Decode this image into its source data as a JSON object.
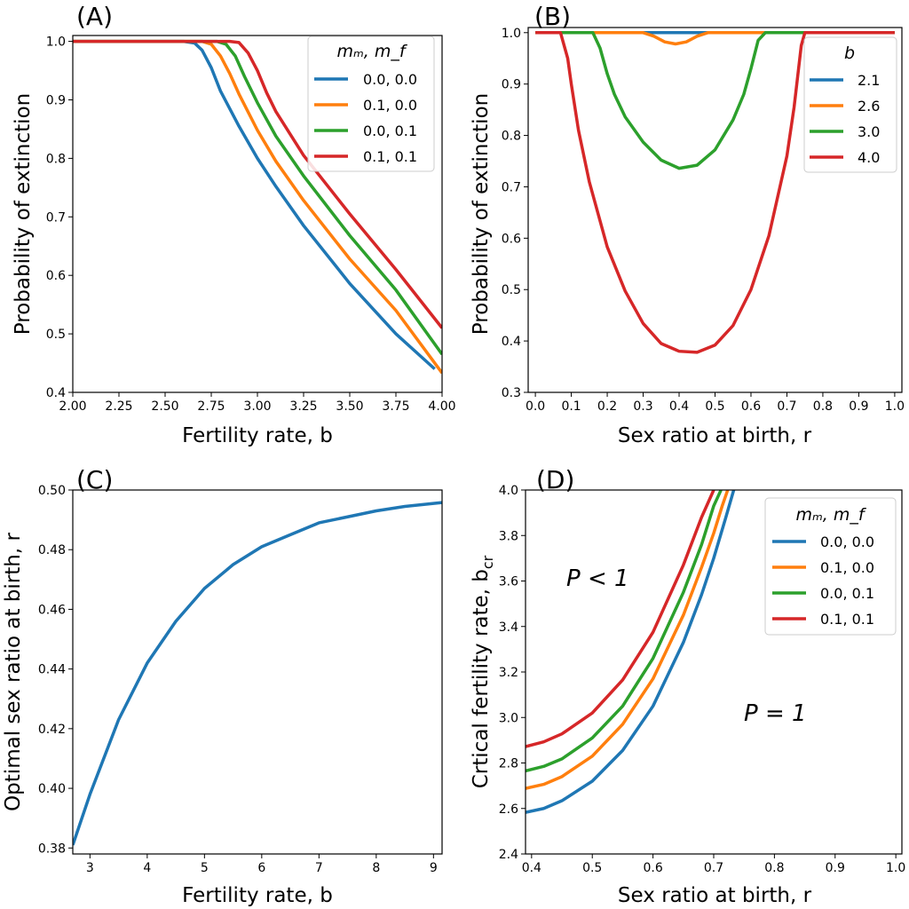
{
  "colors": {
    "blue": "#1f77b4",
    "orange": "#ff7f0e",
    "green": "#2ca02c",
    "red": "#d62728"
  },
  "chart_data": [
    {
      "id": "A",
      "panel_label": "(A)",
      "type": "line",
      "xlabel": "Fertility rate, b",
      "ylabel": "Probability of extinction",
      "xlim": [
        2.0,
        4.0
      ],
      "ylim": [
        0.4,
        1.01
      ],
      "xticks": [
        2.0,
        2.25,
        2.5,
        2.75,
        3.0,
        3.25,
        3.5,
        3.75,
        4.0
      ],
      "xtick_labels": [
        "2.00",
        "2.25",
        "2.50",
        "2.75",
        "3.00",
        "3.25",
        "3.50",
        "3.75",
        "4.00"
      ],
      "yticks": [
        0.4,
        0.5,
        0.6,
        0.7,
        0.8,
        0.9,
        1.0
      ],
      "ytick_labels": [
        "0.4",
        "0.5",
        "0.6",
        "0.7",
        "0.8",
        "0.9",
        "1.0"
      ],
      "legend": {
        "title": "m_m, m_f",
        "title_display": "mₘ, m_f",
        "position": "top-right"
      },
      "series": [
        {
          "name": "0.0, 0.0",
          "color": "#1f77b4",
          "x": [
            2.0,
            2.6,
            2.66,
            2.7,
            2.75,
            2.8,
            2.9,
            3.0,
            3.1,
            3.25,
            3.5,
            3.75,
            3.96
          ],
          "y": [
            1.0,
            1.0,
            0.997,
            0.985,
            0.955,
            0.915,
            0.855,
            0.8,
            0.752,
            0.685,
            0.586,
            0.5,
            0.44
          ]
        },
        {
          "name": "0.1, 0.0",
          "color": "#ff7f0e",
          "x": [
            2.0,
            2.7,
            2.75,
            2.8,
            2.85,
            2.9,
            3.0,
            3.1,
            3.25,
            3.5,
            3.75,
            4.0
          ],
          "y": [
            1.0,
            1.0,
            0.995,
            0.975,
            0.945,
            0.91,
            0.848,
            0.795,
            0.728,
            0.628,
            0.54,
            0.433
          ]
        },
        {
          "name": "0.0, 0.1",
          "color": "#2ca02c",
          "x": [
            2.0,
            2.78,
            2.83,
            2.88,
            2.93,
            3.0,
            3.1,
            3.25,
            3.5,
            3.75,
            4.0
          ],
          "y": [
            1.0,
            1.0,
            0.995,
            0.975,
            0.94,
            0.895,
            0.838,
            0.77,
            0.668,
            0.575,
            0.465
          ]
        },
        {
          "name": "0.1, 0.1",
          "color": "#d62728",
          "x": [
            2.0,
            2.85,
            2.9,
            2.95,
            3.0,
            3.05,
            3.1,
            3.25,
            3.5,
            3.75,
            4.0
          ],
          "y": [
            1.0,
            1.0,
            0.998,
            0.98,
            0.95,
            0.912,
            0.88,
            0.805,
            0.705,
            0.61,
            0.51
          ]
        }
      ]
    },
    {
      "id": "B",
      "panel_label": "(B)",
      "type": "line",
      "xlabel": "Sex ratio at birth, r",
      "ylabel": "Probability of extinction",
      "xlim": [
        -0.02,
        1.02
      ],
      "ylim": [
        0.3,
        1.01
      ],
      "xticks": [
        0.0,
        0.1,
        0.2,
        0.3,
        0.4,
        0.5,
        0.6,
        0.7,
        0.8,
        0.9,
        1.0
      ],
      "xtick_labels": [
        "0.0",
        "0.1",
        "0.2",
        "0.3",
        "0.4",
        "0.5",
        "0.6",
        "0.7",
        "0.8",
        "0.9",
        "1.0"
      ],
      "yticks": [
        0.3,
        0.4,
        0.5,
        0.6,
        0.7,
        0.8,
        0.9,
        1.0
      ],
      "ytick_labels": [
        "0.3",
        "0.4",
        "0.5",
        "0.6",
        "0.7",
        "0.8",
        "0.9",
        "1.0"
      ],
      "legend": {
        "title": "b",
        "title_display": "b",
        "position": "top-right"
      },
      "series": [
        {
          "name": "2.1",
          "color": "#1f77b4",
          "x": [
            0.0,
            1.0
          ],
          "y": [
            1.0,
            1.0
          ]
        },
        {
          "name": "2.6",
          "color": "#ff7f0e",
          "x": [
            0.0,
            0.3,
            0.33,
            0.36,
            0.39,
            0.42,
            0.45,
            0.48,
            1.0
          ],
          "y": [
            1.0,
            1.0,
            0.993,
            0.982,
            0.978,
            0.982,
            0.993,
            1.0,
            1.0
          ]
        },
        {
          "name": "3.0",
          "color": "#2ca02c",
          "x": [
            0.0,
            0.16,
            0.18,
            0.2,
            0.22,
            0.25,
            0.3,
            0.35,
            0.4,
            0.45,
            0.5,
            0.55,
            0.58,
            0.6,
            0.62,
            0.64,
            1.0
          ],
          "y": [
            1.0,
            1.0,
            0.97,
            0.92,
            0.88,
            0.836,
            0.787,
            0.752,
            0.736,
            0.742,
            0.772,
            0.83,
            0.88,
            0.93,
            0.985,
            1.0,
            1.0
          ]
        },
        {
          "name": "4.0",
          "color": "#d62728",
          "x": [
            0.0,
            0.07,
            0.09,
            0.1,
            0.12,
            0.15,
            0.2,
            0.25,
            0.3,
            0.35,
            0.4,
            0.45,
            0.5,
            0.55,
            0.6,
            0.65,
            0.7,
            0.72,
            0.74,
            0.75,
            1.0
          ],
          "y": [
            1.0,
            1.0,
            0.95,
            0.9,
            0.81,
            0.71,
            0.583,
            0.497,
            0.434,
            0.395,
            0.38,
            0.378,
            0.392,
            0.43,
            0.5,
            0.605,
            0.76,
            0.855,
            0.975,
            1.0,
            1.0
          ]
        }
      ]
    },
    {
      "id": "C",
      "panel_label": "(C)",
      "type": "line",
      "xlabel": "Fertility rate, b",
      "ylabel": "Optimal sex ratio at birth, r",
      "xlim": [
        2.7,
        9.15
      ],
      "ylim": [
        0.378,
        0.5
      ],
      "xticks": [
        3,
        4,
        5,
        6,
        7,
        8,
        9
      ],
      "xtick_labels": [
        "3",
        "4",
        "5",
        "6",
        "7",
        "8",
        "9"
      ],
      "yticks": [
        0.38,
        0.4,
        0.42,
        0.44,
        0.46,
        0.48,
        0.5
      ],
      "ytick_labels": [
        "0.38",
        "0.40",
        "0.42",
        "0.44",
        "0.46",
        "0.48",
        "0.50"
      ],
      "series": [
        {
          "name": "optimal r",
          "color": "#1f77b4",
          "x": [
            2.7,
            3.0,
            3.5,
            4.0,
            4.5,
            5.0,
            5.5,
            6.0,
            6.5,
            7.0,
            7.5,
            8.0,
            8.5,
            9.0,
            9.15
          ],
          "y": [
            0.381,
            0.398,
            0.423,
            0.442,
            0.456,
            0.467,
            0.475,
            0.481,
            0.485,
            0.489,
            0.491,
            0.493,
            0.4945,
            0.4955,
            0.4958
          ]
        }
      ]
    },
    {
      "id": "D",
      "panel_label": "(D)",
      "type": "line",
      "xlabel": "Sex ratio at birth, r",
      "ylabel": "Crtical fertility rate, b_cr",
      "ylabel_display": "Crtical fertility rate, b",
      "ylabel_sub": "cr",
      "xlim": [
        0.39,
        1.01
      ],
      "ylim": [
        2.4,
        4.0
      ],
      "xticks": [
        0.4,
        0.5,
        0.6,
        0.7,
        0.8,
        0.9,
        1.0
      ],
      "xtick_labels": [
        "0.4",
        "0.5",
        "0.6",
        "0.7",
        "0.8",
        "0.9",
        "1.0"
      ],
      "yticks": [
        2.4,
        2.6,
        2.8,
        3.0,
        3.2,
        3.4,
        3.6,
        3.8,
        4.0
      ],
      "ytick_labels": [
        "2.4",
        "2.6",
        "2.8",
        "3.0",
        "3.2",
        "3.4",
        "3.6",
        "3.8",
        "4.0"
      ],
      "legend": {
        "title": "m_m, m_f",
        "title_display": "mₘ, m_f",
        "position": "top-right"
      },
      "annotations": [
        {
          "text": "P < 1",
          "x": 0.45,
          "y": 3.6
        },
        {
          "text": "P = 1",
          "x": 0.75,
          "y": 2.95
        }
      ],
      "series": [
        {
          "name": "0.0, 0.0",
          "color": "#1f77b4",
          "x": [
            0.39,
            0.42,
            0.45,
            0.5,
            0.55,
            0.6,
            0.65,
            0.68,
            0.7,
            0.72,
            0.733
          ],
          "y": [
            2.583,
            2.6,
            2.634,
            2.72,
            2.855,
            3.05,
            3.33,
            3.54,
            3.7,
            3.88,
            4.0
          ]
        },
        {
          "name": "0.1, 0.0",
          "color": "#ff7f0e",
          "x": [
            0.39,
            0.42,
            0.45,
            0.5,
            0.55,
            0.6,
            0.65,
            0.68,
            0.7,
            0.714,
            0.723
          ],
          "y": [
            2.688,
            2.706,
            2.74,
            2.83,
            2.97,
            3.17,
            3.45,
            3.66,
            3.81,
            3.93,
            4.0
          ]
        },
        {
          "name": "0.0, 0.1",
          "color": "#2ca02c",
          "x": [
            0.39,
            0.42,
            0.45,
            0.5,
            0.55,
            0.6,
            0.65,
            0.68,
            0.7,
            0.712
          ],
          "y": [
            2.765,
            2.785,
            2.818,
            2.91,
            3.05,
            3.26,
            3.55,
            3.76,
            3.93,
            4.0
          ]
        },
        {
          "name": "0.1, 0.1",
          "color": "#d62728",
          "x": [
            0.39,
            0.42,
            0.45,
            0.5,
            0.55,
            0.6,
            0.65,
            0.68,
            0.7
          ],
          "y": [
            2.872,
            2.893,
            2.928,
            3.02,
            3.165,
            3.375,
            3.67,
            3.88,
            4.0
          ]
        }
      ]
    }
  ]
}
